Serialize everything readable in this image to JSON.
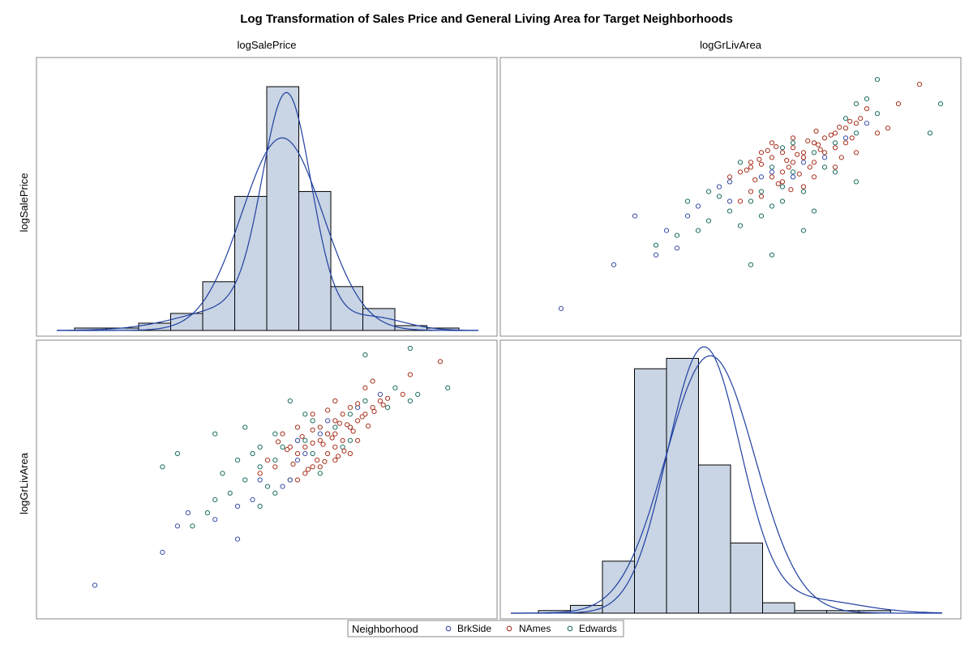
{
  "chart_data": {
    "type": "scatter",
    "title": "Log Transformation of Sales Price and General Living Area for Target Neighborhoods",
    "variables": [
      "logSalePrice",
      "logGrLivArea"
    ],
    "layout": "scatter-plot-matrix with histograms and density curves on the diagonal",
    "legend": {
      "title": "Neighborhood",
      "placement": "bottom",
      "entries": [
        {
          "name": "BrkSide",
          "color": "#3b4ea6"
        },
        {
          "name": "NAmes",
          "color": "#a8321e"
        },
        {
          "name": "Edwards",
          "color": "#1b6f62"
        }
      ]
    },
    "histogram_fill": "#c9d4e4",
    "curve_color": "#1f3fa0",
    "histograms": {
      "logSalePrice": {
        "relative_heights": [
          0.01,
          0.01,
          0.03,
          0.07,
          0.2,
          0.55,
          1.0,
          0.57,
          0.18,
          0.09,
          0.02,
          0.01
        ]
      },
      "logGrLivArea": {
        "relative_heights": [
          0.01,
          0.03,
          0.2,
          0.94,
          0.98,
          0.57,
          0.27,
          0.04,
          0.01,
          0.01,
          0.01
        ]
      }
    },
    "scatter": {
      "note": "Points in approximate data units (logGrLivArea, logSalePrice); estimated by eye, axis ticks not printed",
      "xlim": [
        6.3,
        8.3
      ],
      "ylim": [
        10.3,
        13.0
      ],
      "BrkSide": [
        [
          6.5,
          10.5
        ],
        [
          6.75,
          10.95
        ],
        [
          6.95,
          11.05
        ],
        [
          7.05,
          11.12
        ],
        [
          6.85,
          11.45
        ],
        [
          7.15,
          11.55
        ],
        [
          7.3,
          11.6
        ],
        [
          7.25,
          11.75
        ],
        [
          7.45,
          11.85
        ],
        [
          7.6,
          11.85
        ],
        [
          7.65,
          12.0
        ],
        [
          7.85,
          12.25
        ],
        [
          7.95,
          12.4
        ],
        [
          7.1,
          11.45
        ],
        [
          7.5,
          11.9
        ],
        [
          7.3,
          11.8
        ],
        [
          7.75,
          12.05
        ],
        [
          7.0,
          11.3
        ]
      ],
      "NAmes": [
        [
          7.35,
          11.9
        ],
        [
          7.4,
          11.95
        ],
        [
          7.45,
          11.98
        ],
        [
          7.5,
          12.05
        ],
        [
          7.55,
          12.1
        ],
        [
          7.6,
          12.15
        ],
        [
          7.65,
          12.1
        ],
        [
          7.7,
          12.2
        ],
        [
          7.75,
          12.25
        ],
        [
          7.8,
          12.3
        ],
        [
          7.85,
          12.35
        ],
        [
          7.9,
          12.4
        ],
        [
          7.5,
          11.85
        ],
        [
          7.55,
          11.9
        ],
        [
          7.6,
          12.0
        ],
        [
          7.65,
          12.05
        ],
        [
          7.45,
          12.1
        ],
        [
          7.4,
          11.7
        ],
        [
          7.55,
          11.8
        ],
        [
          7.7,
          12.0
        ],
        [
          7.75,
          12.1
        ],
        [
          7.8,
          12.15
        ],
        [
          7.85,
          12.2
        ],
        [
          7.6,
          12.25
        ],
        [
          7.5,
          12.2
        ],
        [
          7.65,
          11.75
        ],
        [
          7.4,
          12.0
        ],
        [
          7.3,
          11.85
        ],
        [
          7.35,
          11.6
        ],
        [
          7.7,
          11.85
        ],
        [
          7.8,
          11.95
        ],
        [
          7.9,
          12.1
        ],
        [
          8.0,
          12.3
        ],
        [
          8.1,
          12.6
        ],
        [
          7.95,
          12.55
        ],
        [
          8.2,
          12.8
        ],
        [
          7.45,
          11.65
        ],
        [
          7.58,
          11.95
        ],
        [
          7.62,
          12.08
        ],
        [
          7.72,
          12.18
        ],
        [
          7.48,
          12.12
        ],
        [
          7.53,
          11.78
        ],
        [
          7.67,
          12.22
        ],
        [
          7.78,
          12.28
        ],
        [
          7.83,
          12.05
        ],
        [
          7.42,
          11.82
        ],
        [
          7.57,
          12.02
        ],
        [
          7.63,
          11.88
        ],
        [
          7.73,
          12.13
        ],
        [
          7.88,
          12.25
        ],
        [
          7.38,
          11.92
        ],
        [
          7.52,
          12.16
        ],
        [
          7.68,
          11.95
        ],
        [
          7.82,
          12.36
        ],
        [
          7.92,
          12.45
        ],
        [
          8.05,
          12.35
        ],
        [
          7.44,
          12.03
        ],
        [
          7.59,
          11.72
        ],
        [
          7.71,
          12.32
        ],
        [
          7.87,
          12.42
        ]
      ],
      "Edwards": [
        [
          6.95,
          11.15
        ],
        [
          7.05,
          11.25
        ],
        [
          7.15,
          11.3
        ],
        [
          7.2,
          11.4
        ],
        [
          7.3,
          11.5
        ],
        [
          7.4,
          11.6
        ],
        [
          7.55,
          11.75
        ],
        [
          7.6,
          11.9
        ],
        [
          7.7,
          12.1
        ],
        [
          7.8,
          12.2
        ],
        [
          7.9,
          12.3
        ],
        [
          8.0,
          12.5
        ],
        [
          7.1,
          11.6
        ],
        [
          7.25,
          11.65
        ],
        [
          7.35,
          11.35
        ],
        [
          7.45,
          11.45
        ],
        [
          7.5,
          11.05
        ],
        [
          7.4,
          10.95
        ],
        [
          7.65,
          11.7
        ],
        [
          7.75,
          11.95
        ],
        [
          7.85,
          12.45
        ],
        [
          7.95,
          12.65
        ],
        [
          8.3,
          12.6
        ],
        [
          8.25,
          12.3
        ],
        [
          7.6,
          12.2
        ],
        [
          7.7,
          11.5
        ],
        [
          7.5,
          11.95
        ],
        [
          7.55,
          12.15
        ],
        [
          7.65,
          11.3
        ],
        [
          7.3,
          11.8
        ],
        [
          7.2,
          11.7
        ],
        [
          7.8,
          11.9
        ],
        [
          7.9,
          12.6
        ],
        [
          7.5,
          11.55
        ],
        [
          7.6,
          11.85
        ],
        [
          7.35,
          12.0
        ],
        [
          7.9,
          11.8
        ],
        [
          8.0,
          12.85
        ],
        [
          7.7,
          12.2
        ],
        [
          7.45,
          11.7
        ],
        [
          7.55,
          11.6
        ],
        [
          7.65,
          12.05
        ]
      ]
    }
  }
}
